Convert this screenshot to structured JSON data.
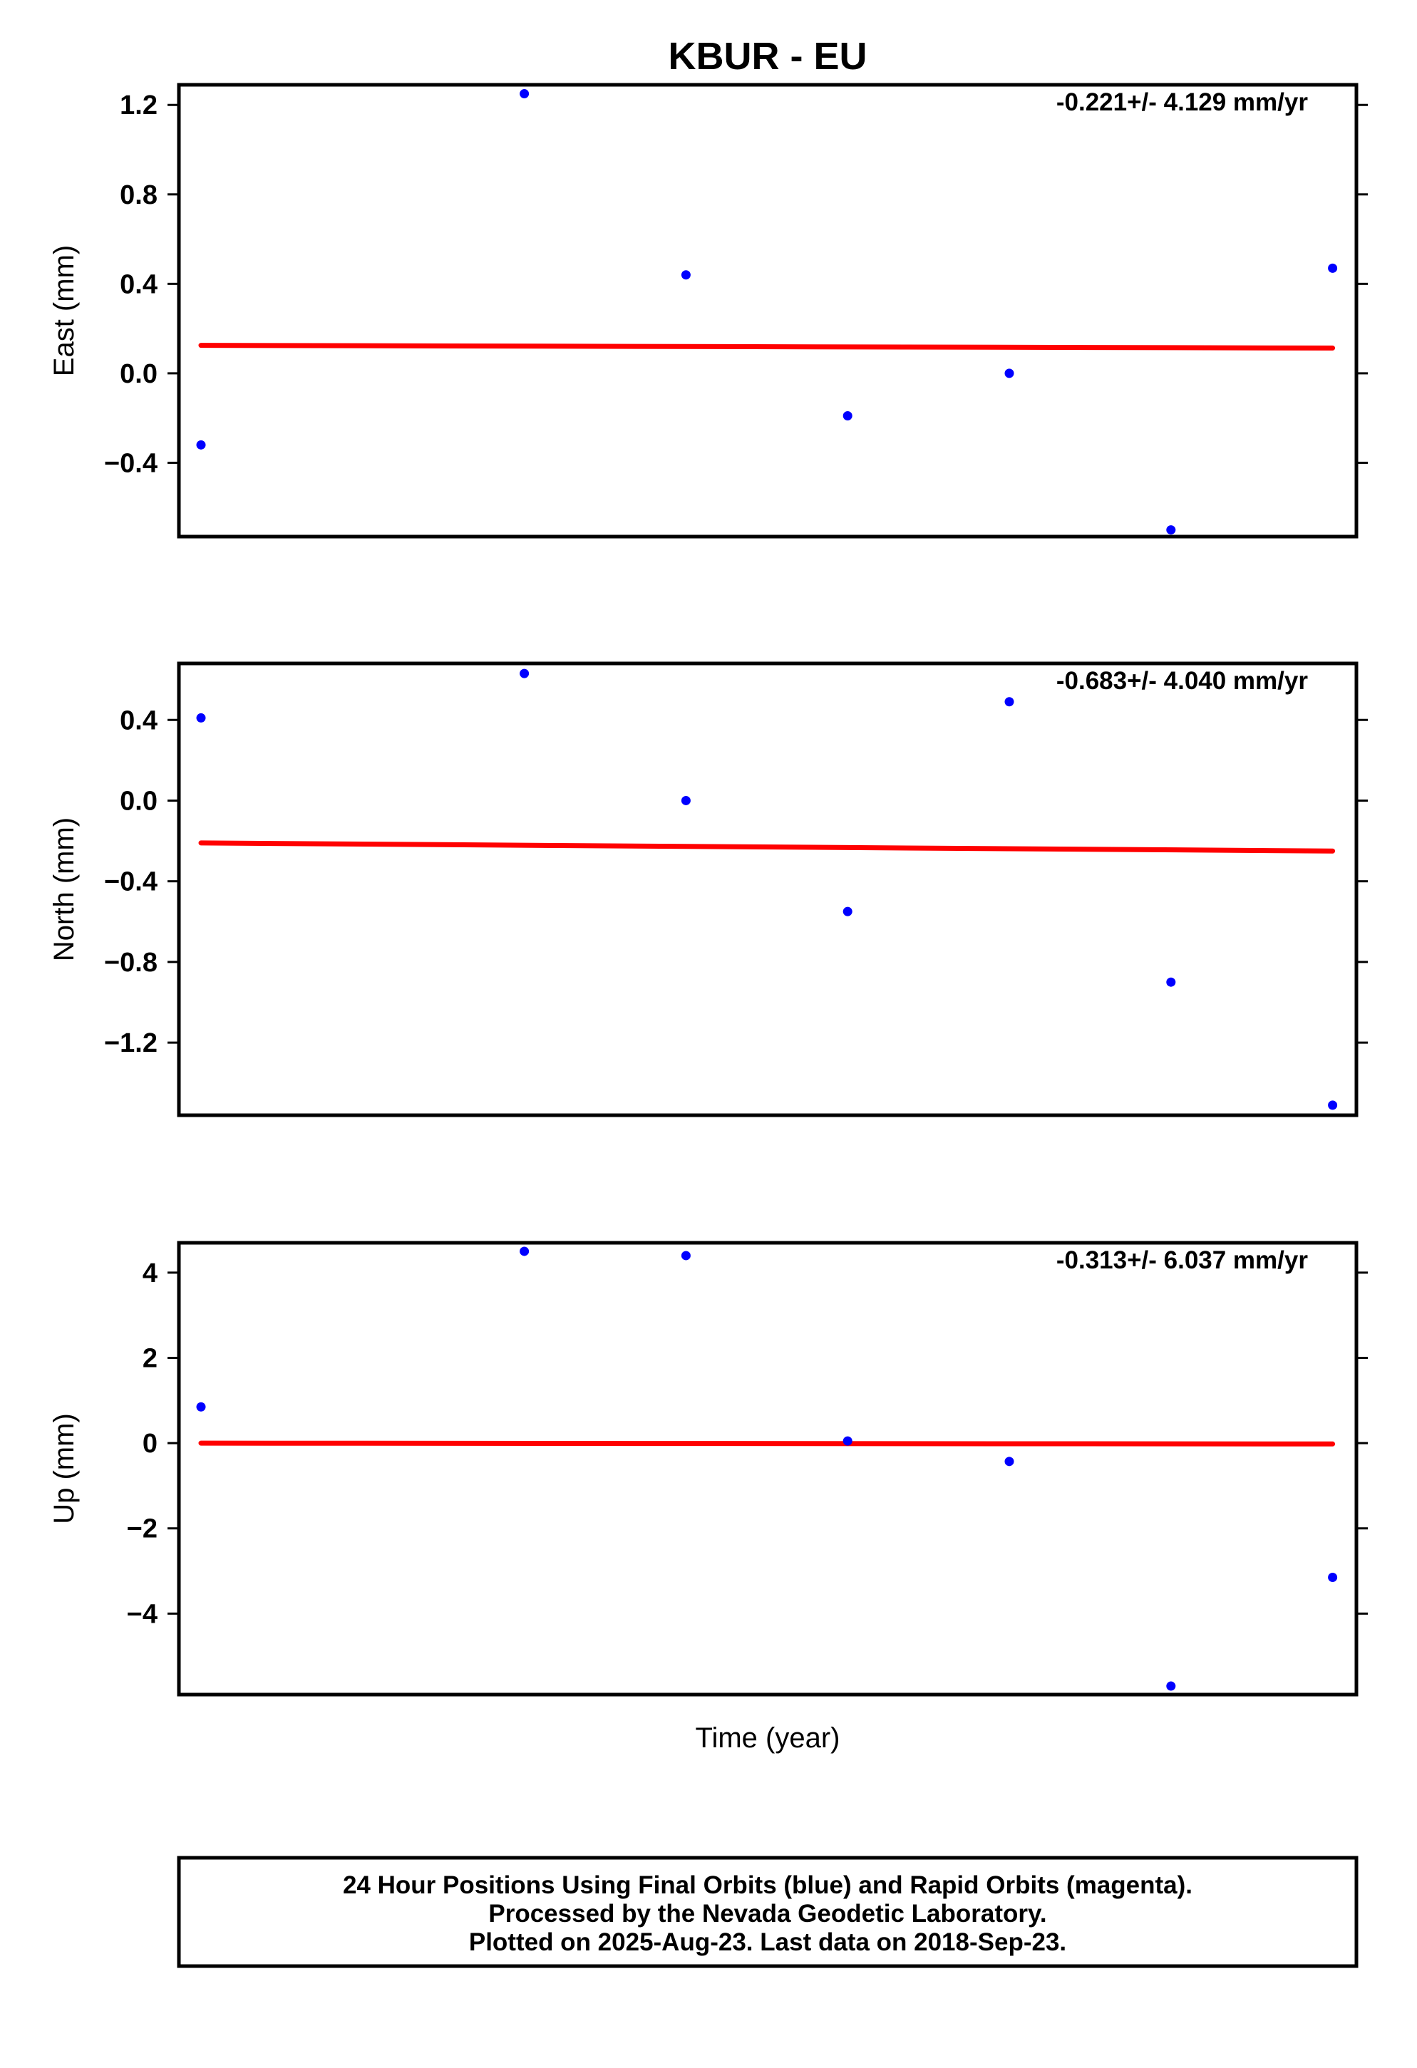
{
  "title": "KBUR - EU",
  "xlabel": "Time (year)",
  "colors": {
    "final_orbits": "#0000ff",
    "trend": "#ff0000",
    "frame": "#000000"
  },
  "footer": {
    "line1": "24 Hour Positions Using Final Orbits (blue) and Rapid Orbits (magenta).",
    "line2": "Processed by the Nevada Geodetic Laboratory.",
    "line3": "Plotted on 2025-Aug-23. Last data on 2018-Sep-23."
  },
  "chart_data": [
    {
      "type": "scatter",
      "component": "east",
      "ylabel": "East (mm)",
      "rate_text": "-0.221+/- 4.129 mm/yr",
      "ylim": [
        -0.73,
        1.29
      ],
      "yticks": [
        1.2,
        0.8,
        0.4,
        0.0,
        -0.4
      ],
      "ytick_labels": [
        "1.2",
        "0.8",
        "0.4",
        "0.0",
        "−0.4"
      ],
      "x": [
        0,
        2,
        3,
        4,
        5,
        6,
        7
      ],
      "y": [
        -0.32,
        1.25,
        0.44,
        -0.19,
        0.0,
        -0.7,
        0.47
      ],
      "trend": {
        "x": [
          0,
          7
        ],
        "y": [
          0.125,
          0.113
        ]
      },
      "grid": false
    },
    {
      "type": "scatter",
      "component": "north",
      "ylabel": "North (mm)",
      "rate_text": "-0.683+/- 4.040 mm/yr",
      "ylim": [
        -1.56,
        0.68
      ],
      "yticks": [
        0.4,
        0.0,
        -0.4,
        -0.8,
        -1.2
      ],
      "ytick_labels": [
        "0.4",
        "0.0",
        "−0.4",
        "−0.8",
        "−1.2"
      ],
      "x": [
        0,
        2,
        3,
        4,
        5,
        6,
        7
      ],
      "y": [
        0.41,
        0.63,
        0.0,
        -0.55,
        0.49,
        -0.9,
        -1.51
      ],
      "trend": {
        "x": [
          0,
          7
        ],
        "y": [
          -0.21,
          -0.25
        ]
      },
      "grid": false
    },
    {
      "type": "scatter",
      "component": "up",
      "ylabel": "Up (mm)",
      "rate_text": "-0.313+/- 6.037 mm/yr",
      "ylim": [
        -5.9,
        4.7
      ],
      "yticks": [
        4,
        2,
        0,
        -2,
        -4
      ],
      "ytick_labels": [
        "4",
        "2",
        "0",
        "−2",
        "−4"
      ],
      "x": [
        0,
        2,
        3,
        4,
        5,
        6,
        7
      ],
      "y": [
        0.85,
        4.5,
        4.4,
        0.05,
        -0.43,
        -5.7,
        -3.15
      ],
      "trend": {
        "x": [
          0,
          7
        ],
        "y": [
          0.0,
          -0.02
        ]
      },
      "grid": false
    }
  ]
}
